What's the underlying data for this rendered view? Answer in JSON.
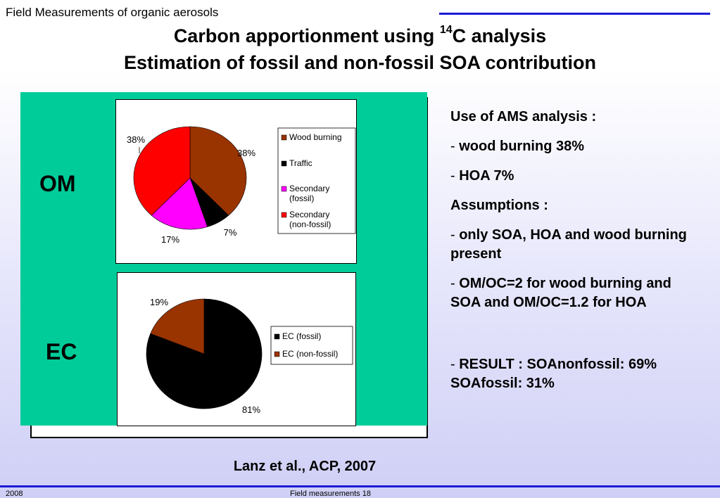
{
  "header": {
    "label": "Field Measurements of organic aerosols"
  },
  "title": {
    "line1_prefix": "Carbon apportionment using ",
    "line1_sup": "14",
    "line1_suffix": "C analysis",
    "line2": "Estimation of fossil and non-fossil SOA contribution"
  },
  "colors": {
    "panel_bg": "#00cc99",
    "rule": "#1a1ad6",
    "wood_burning": "#993300",
    "traffic": "#000000",
    "secondary_fossil": "#ff00ff",
    "secondary_nonfossil": "#ff0000",
    "ec_fossil": "#000000",
    "ec_nonfossil": "#993300"
  },
  "panels": {
    "om_label": "OM",
    "ec_label": "EC"
  },
  "chart_data": [
    {
      "type": "pie",
      "series": [
        {
          "name": "Wood burning",
          "value": 38,
          "label": "38%",
          "color": "#993300"
        },
        {
          "name": "Traffic",
          "value": 7,
          "label": "7%",
          "color": "#000000"
        },
        {
          "name": "Secondary (fossil)",
          "value": 17,
          "label": "17%",
          "color": "#ff00ff"
        },
        {
          "name": "Secondary (non-fossil)",
          "value": 38,
          "label": "38%",
          "color": "#ff0000"
        }
      ],
      "legend": [
        "Wood burning",
        "Traffic",
        "Secondary (fossil)",
        "Secondary (non-fossil)"
      ],
      "legend_position": "right"
    },
    {
      "type": "pie",
      "series": [
        {
          "name": "EC (fossil)",
          "value": 81,
          "label": "81%",
          "color": "#000000"
        },
        {
          "name": "EC (non-fossil)",
          "value": 19,
          "label": "19%",
          "color": "#993300"
        }
      ],
      "legend": [
        "EC (fossil)",
        "EC (non-fossil)"
      ],
      "legend_position": "right"
    }
  ],
  "notes": {
    "heading1": "Use of AMS analysis :",
    "item1": "wood burning 38%",
    "item2": "HOA  7%",
    "heading2": "Assumptions :",
    "item3": "only SOA, HOA and wood burning present",
    "item4": "OM/OC=2 for wood burning and SOA and OM/OC=1.2 for HOA",
    "item5": "RESULT : SOAnonfossil: 69% SOAfossil: 31%",
    "dash": "- "
  },
  "citation": "Lanz et al., ACP, 2007",
  "footer": {
    "year": "2008",
    "slide": "Field measurements 18"
  }
}
